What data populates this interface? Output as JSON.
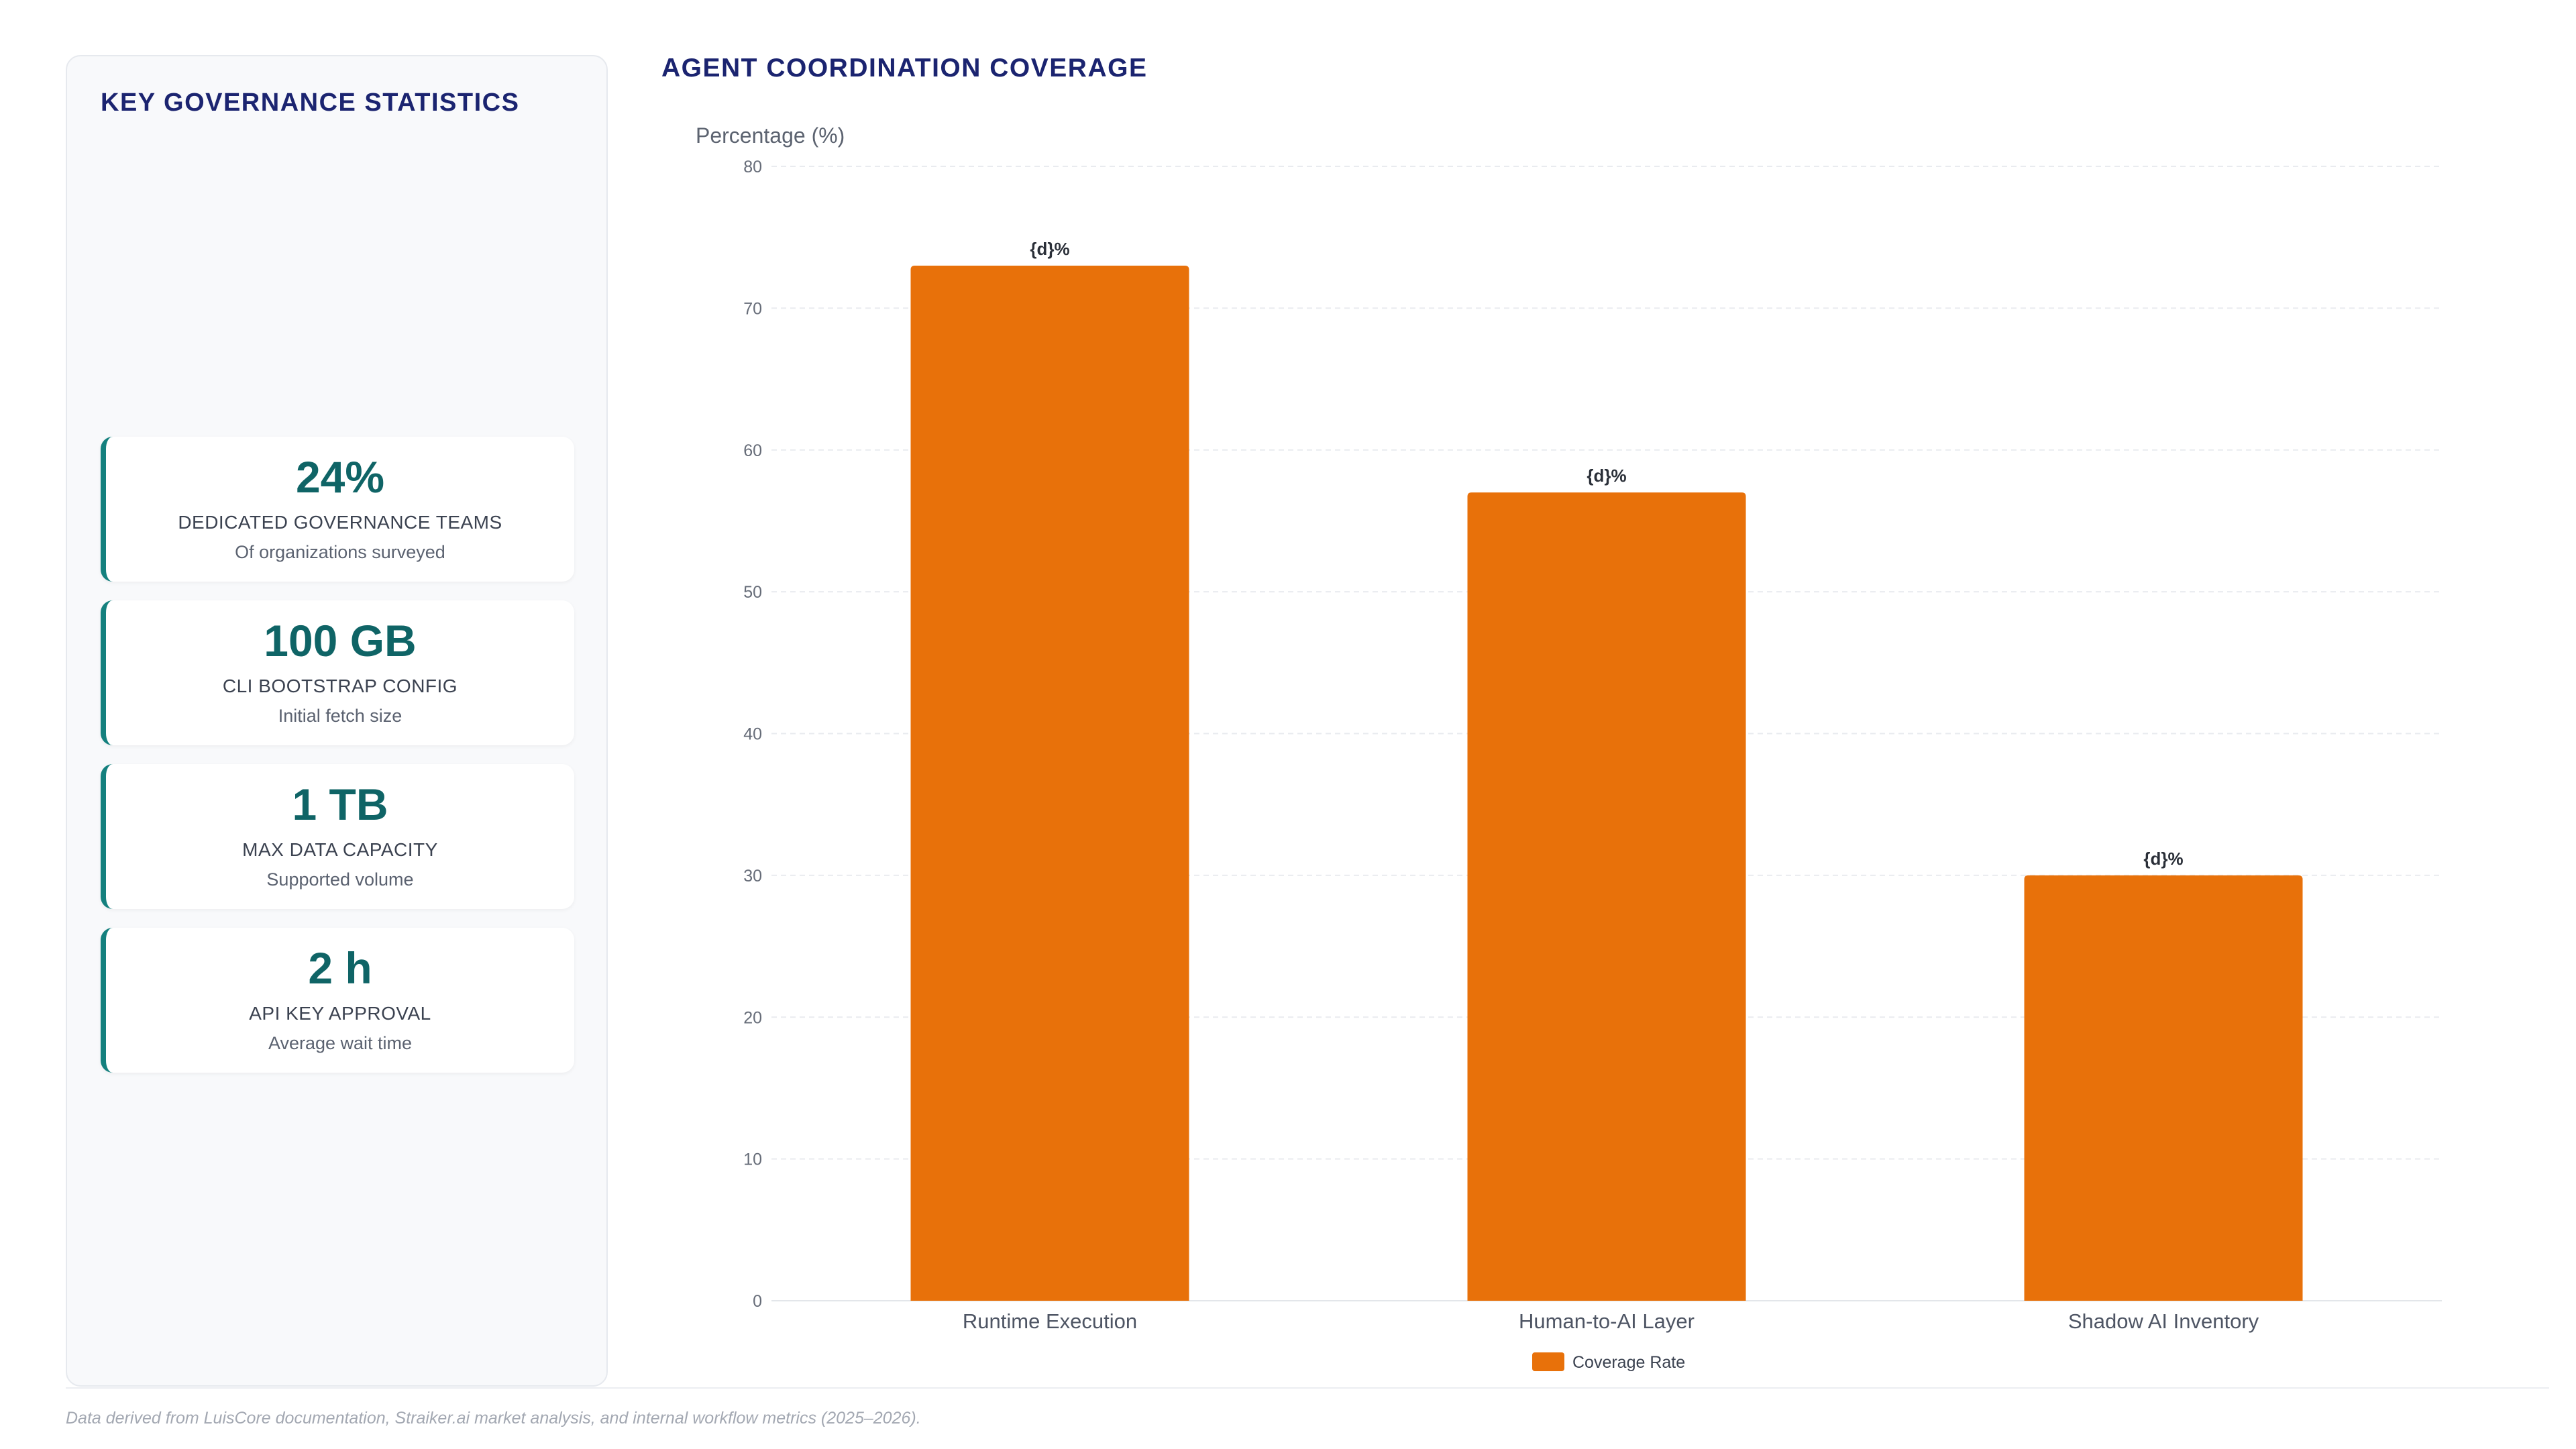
{
  "stats_panel": {
    "title": "KEY GOVERNANCE STATISTICS",
    "cards": [
      {
        "value": "24%",
        "label": "DEDICATED GOVERNANCE TEAMS",
        "sub": "Of organizations surveyed"
      },
      {
        "value": "100 GB",
        "label": "CLI BOOTSTRAP CONFIG",
        "sub": "Initial fetch size"
      },
      {
        "value": "1 TB",
        "label": "MAX DATA CAPACITY",
        "sub": "Supported volume"
      },
      {
        "value": "2 h",
        "label": "API KEY APPROVAL",
        "sub": "Average wait time"
      }
    ],
    "accent_color": "#14807e",
    "value_color": "#0f6466"
  },
  "chart_data": {
    "type": "bar",
    "title": "AGENT COORDINATION COVERAGE",
    "ylabel": "Percentage (%)",
    "xlabel": "",
    "categories": [
      "Runtime Execution",
      "Human-to-AI Layer",
      "Shadow AI Inventory"
    ],
    "series": [
      {
        "name": "Coverage Rate",
        "values": [
          73,
          57,
          30
        ],
        "color": "#e8710a"
      }
    ],
    "data_labels": [
      "{d}%",
      "{d}%",
      "{d}%"
    ],
    "ylim": [
      0,
      80
    ],
    "yticks": [
      0,
      10,
      20,
      30,
      40,
      50,
      60,
      70,
      80
    ],
    "grid": true,
    "legend_position": "bottom-center"
  },
  "footnote": "Data derived from LuisCore documentation, Straiker.ai market analysis, and internal workflow metrics (2025–2026)."
}
